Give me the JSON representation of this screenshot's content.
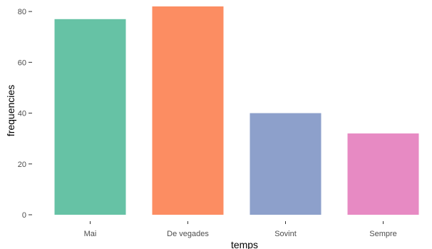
{
  "chart_data": {
    "type": "bar",
    "title": "",
    "xlabel": "temps",
    "ylabel": "frequencies",
    "categories": [
      "Mai",
      "De vegades",
      "Sovint",
      "Sempre"
    ],
    "values": [
      77,
      82,
      40,
      32
    ],
    "colors": [
      "#66c2a5",
      "#fc8d62",
      "#8da0cb",
      "#e78ac3"
    ],
    "ylim": [
      0,
      82
    ],
    "yticks": [
      "0",
      "20",
      "40",
      "60",
      "80"
    ],
    "grid": false,
    "legend": "none"
  }
}
